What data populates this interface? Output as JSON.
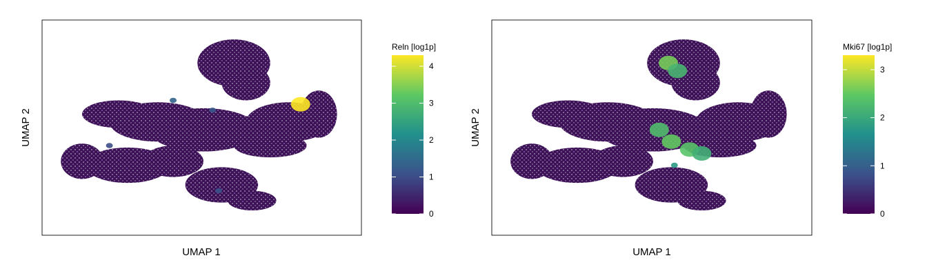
{
  "chart_data": [
    {
      "type": "scatter",
      "title": "",
      "xlabel": "UMAP 1",
      "ylabel": "UMAP 2",
      "grid": false,
      "colorbar": {
        "title": "Reln [log1p]",
        "range": [
          0,
          4.3
        ],
        "ticks": [
          0,
          1,
          2,
          3,
          4
        ],
        "tick_labels": [
          "0",
          "1",
          "2",
          "3",
          "4"
        ],
        "colormap": "viridis",
        "colors": [
          "#440154",
          "#3b528b",
          "#21908c",
          "#5dc863",
          "#fde725"
        ]
      },
      "base_color": "#3d1259",
      "highlight_note": "Expression near 0 almost everywhere; a few high-value cells",
      "hotspots": [
        {
          "x": 0.82,
          "y": 0.61,
          "value": 4.3
        },
        {
          "x": 0.4,
          "y": 0.63,
          "value": 1.4
        },
        {
          "x": 0.53,
          "y": 0.58,
          "value": 1.2
        },
        {
          "x": 0.19,
          "y": 0.4,
          "value": 1.0
        },
        {
          "x": 0.55,
          "y": 0.17,
          "value": 1.1
        }
      ]
    },
    {
      "type": "scatter",
      "title": "",
      "xlabel": "UMAP 1",
      "ylabel": "UMAP 2",
      "grid": false,
      "colorbar": {
        "title": "Mki67 [log1p]",
        "range": [
          0,
          3.3
        ],
        "ticks": [
          0,
          1,
          2,
          3
        ],
        "tick_labels": [
          "0",
          "1",
          "2",
          "3"
        ],
        "colormap": "viridis",
        "colors": [
          "#440154",
          "#3b528b",
          "#21908c",
          "#5dc863",
          "#fde725"
        ]
      },
      "base_color": "#3d1259",
      "highlight_note": "Elevated expression in upper-left branch and central region",
      "hotspots": [
        {
          "x": 0.55,
          "y": 0.82,
          "value": 2.6
        },
        {
          "x": 0.58,
          "y": 0.78,
          "value": 2.2
        },
        {
          "x": 0.52,
          "y": 0.48,
          "value": 2.3
        },
        {
          "x": 0.56,
          "y": 0.42,
          "value": 2.5
        },
        {
          "x": 0.62,
          "y": 0.38,
          "value": 2.4
        },
        {
          "x": 0.66,
          "y": 0.36,
          "value": 2.1
        },
        {
          "x": 0.57,
          "y": 0.3,
          "value": 1.8
        }
      ]
    }
  ]
}
